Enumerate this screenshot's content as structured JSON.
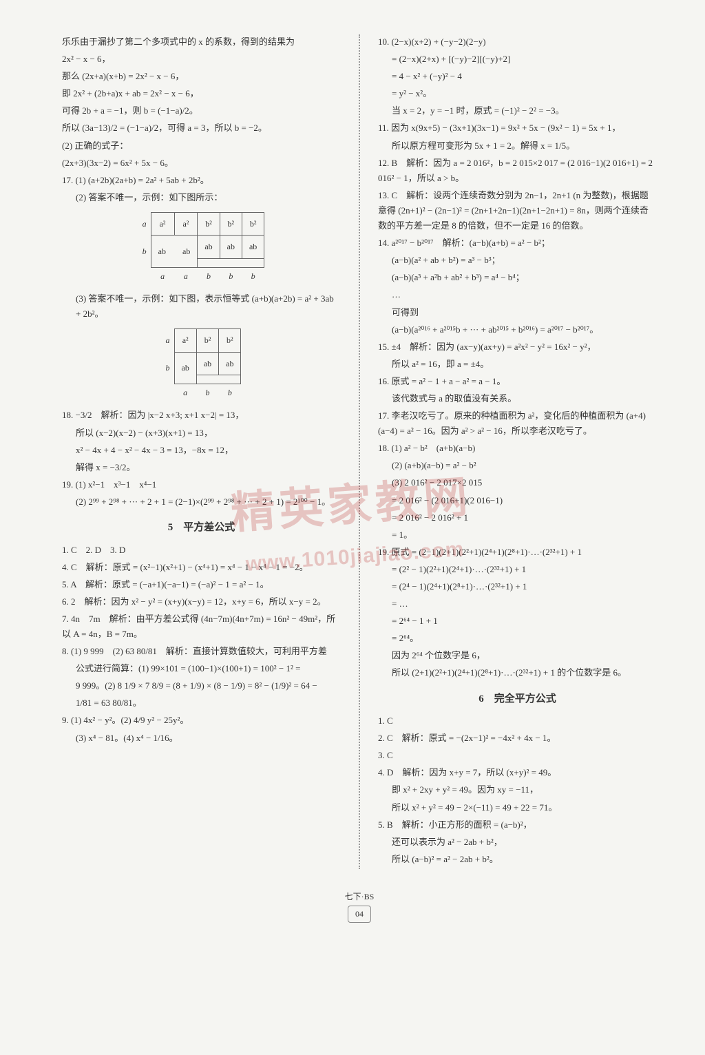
{
  "left": {
    "p1": "乐乐由于漏抄了第二个多项式中的 x 的系数，得到的结果为",
    "p2": "2x² − x − 6，",
    "p3": "那么 (2x+a)(x+b) = 2x² − x − 6，",
    "p4": "即 2x² + (2b+a)x + ab = 2x² − x − 6，",
    "p5": "可得 2b + a = −1，则 b = (−1−a)/2。",
    "p6": "所以 (3a−13)/2 = (−1−a)/2，可得 a = 3，所以 b = −2。",
    "p7": "(2) 正确的式子：",
    "p8": "(2x+3)(3x−2) = 6x² + 5x − 6。",
    "p9": "17. (1) (a+2b)(2a+b) = 2a² + 5ab + 2b²。",
    "p10": "(2) 答案不唯一，示例：如下图所示：",
    "fig1": {
      "row_labels": [
        "a",
        "b"
      ],
      "col_labels": [
        "a",
        "a",
        "b",
        "b",
        "b"
      ],
      "cells": [
        [
          "a²",
          "a²",
          "b²",
          "b²",
          "b²"
        ],
        [
          "",
          "",
          "ab",
          "ab",
          "ab"
        ],
        [
          "ab",
          "ab",
          "",
          "",
          ""
        ]
      ]
    },
    "p11": "(3) 答案不唯一，示例：如下图，表示恒等式 (a+b)(a+2b) = a² + 3ab + 2b²。",
    "fig2": {
      "row_labels": [
        "a",
        "b"
      ],
      "col_labels": [
        "a",
        "b",
        "b"
      ],
      "cells": [
        [
          "a²",
          "b²",
          "b²"
        ],
        [
          "",
          "ab",
          "ab"
        ],
        [
          "ab",
          "",
          ""
        ]
      ]
    },
    "p12": "18. −3/2　解析：因为 |x−2  x+3; x+1  x−2| = 13，",
    "p13": "所以 (x−2)(x−2) − (x+3)(x+1) = 13，",
    "p14": "x² − 4x + 4 − x² − 4x − 3 = 13，−8x = 12，",
    "p15": "解得 x = −3/2。",
    "p16": "19. (1) x²−1　x³−1　x⁴−1",
    "p17": "(2) 2⁹⁹ + 2⁹⁸ + ··· + 2 + 1 = (2−1)×(2⁹⁹ + 2⁹⁸ + ··· + 2 + 1) = 2¹⁰⁰ − 1。",
    "sec5_title": "5　平方差公式",
    "s5_1": "1. C　2. D　3. D",
    "s5_4": "4. C　解析：原式 = (x²−1)(x²+1) − (x⁴+1) = x⁴ − 1 − x⁴ − 1 = −2。",
    "s5_5": "5. A　解析：原式 = (−a+1)(−a−1) = (−a)² − 1 = a² − 1。",
    "s5_6": "6. 2　解析：因为 x² − y² = (x+y)(x−y) = 12，x+y = 6，所以 x−y = 2。",
    "s5_7": "7. 4n　7m　解析：由平方差公式得 (4n−7m)(4n+7m) = 16n² − 49m²，所以 A = 4n，B = 7m。",
    "s5_8": "8. (1) 9 999　(2) 63 80/81　解析：直接计算数值较大，可利用平方差",
    "s5_8b": "公式进行简算：(1) 99×101 = (100−1)×(100+1) = 100² − 1² =",
    "s5_8c": "9 999。(2) 8 1/9 × 7 8/9 = (8 + 1/9) × (8 − 1/9) = 8² − (1/9)² = 64 −",
    "s5_8d": "1/81 = 63 80/81。",
    "s5_9": "9. (1) 4x² − y²。(2) 4/9 y² − 25y²。",
    "s5_9b": "(3) x⁴ − 81。(4) x⁴ − 1/16。"
  },
  "right": {
    "r10": "10. (2−x)(x+2) + (−y−2)(2−y)",
    "r10b": "= (2−x)(2+x) + [(−y)−2][(−y)+2]",
    "r10c": "= 4 − x² + (−y)² − 4",
    "r10d": "= y² − x²。",
    "r10e": "当 x = 2，y = −1 时，原式 = (−1)² − 2² = −3。",
    "r11": "11. 因为 x(9x+5) − (3x+1)(3x−1) = 9x² + 5x − (9x² − 1) = 5x + 1，",
    "r11b": "所以原方程可变形为 5x + 1 = 2。解得 x = 1/5。",
    "r12": "12. B　解析：因为 a = 2 016²，b = 2 015×2 017 = (2 016−1)(2 016+1) = 2 016² − 1，所以 a > b。",
    "r13": "13. C　解析：设两个连续奇数分别为 2n−1，2n+1 (n 为整数)，根据题意得 (2n+1)² − (2n−1)² = (2n+1+2n−1)(2n+1−2n+1) = 8n，则两个连续奇数的平方差一定是 8 的倍数，但不一定是 16 的倍数。",
    "r14": "14. a²⁰¹⁷ − b²⁰¹⁷　解析：(a−b)(a+b) = a² − b²；",
    "r14b": "(a−b)(a² + ab + b²) = a³ − b³；",
    "r14c": "(a−b)(a³ + a²b + ab² + b³) = a⁴ − b⁴；",
    "r14d": "…",
    "r14e": "可得到",
    "r14f": "(a−b)(a²⁰¹⁶ + a²⁰¹⁵b + ··· + ab²⁰¹⁵ + b²⁰¹⁶) = a²⁰¹⁷ − b²⁰¹⁷。",
    "r15": "15. ±4　解析：因为 (ax−y)(ax+y) = a²x² − y² = 16x² − y²，",
    "r15b": "所以 a² = 16，即 a = ±4。",
    "r16": "16. 原式 = a² − 1 + a − a² = a − 1。",
    "r16b": "该代数式与 a 的取值没有关系。",
    "r17": "17. 李老汉吃亏了。原来的种植面积为 a²，变化后的种植面积为 (a+4)(a−4) = a² − 16。因为 a² > a² − 16，所以李老汉吃亏了。",
    "r18": "18. (1) a² − b²　(a+b)(a−b)",
    "r18b": "(2) (a+b)(a−b) = a² − b²",
    "r18c": "(3) 2 016² − 2 017×2 015",
    "r18d": "= 2 016² − (2 016+1)(2 016−1)",
    "r18e": "= 2 016² − 2 016² + 1",
    "r18f": "= 1。",
    "r19": "19. 原式 = (2−1)(2+1)(2²+1)(2⁴+1)(2⁸+1)·…·(2³²+1) + 1",
    "r19b": "= (2² − 1)(2²+1)(2⁴+1)·…·(2³²+1) + 1",
    "r19c": "= (2⁴ − 1)(2⁴+1)(2⁸+1)·…·(2³²+1) + 1",
    "r19d": "= …",
    "r19e": "= 2⁶⁴ − 1 + 1",
    "r19f": "= 2⁶⁴。",
    "r19g": "因为 2⁶⁴ 个位数字是 6，",
    "r19h": "所以 (2+1)(2²+1)(2⁴+1)(2⁸+1)·…·(2³²+1) + 1 的个位数字是 6。",
    "sec6_title": "6　完全平方公式",
    "s6_1": "1. C",
    "s6_2": "2. C　解析：原式 = −(2x−1)² = −4x² + 4x − 1。",
    "s6_3": "3. C",
    "s6_4": "4. D　解析：因为 x+y = 7，所以 (x+y)² = 49。",
    "s6_4b": "即 x² + 2xy + y² = 49。因为 xy = −11，",
    "s6_4c": "所以 x² + y² = 49 − 2×(−11) = 49 + 22 = 71。",
    "s6_5": "5. B　解析：小正方形的面积 = (a−b)²，",
    "s6_5b": "还可以表示为 a² − 2ab + b²，",
    "s6_5c": "所以 (a−b)² = a² − 2ab + b²。"
  },
  "footer": {
    "edition": "七下·BS",
    "page": "04"
  },
  "watermark": {
    "text": "精英家教网",
    "url": "www.1010jiajiao.com"
  }
}
